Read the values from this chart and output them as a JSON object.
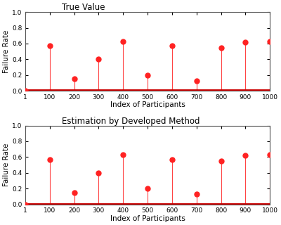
{
  "x_values": [
    1,
    100,
    200,
    300,
    400,
    500,
    600,
    700,
    800,
    900,
    1000
  ],
  "y_true": [
    0.0,
    0.57,
    0.15,
    0.4,
    0.63,
    0.2,
    0.57,
    0.13,
    0.55,
    0.62,
    0.63
  ],
  "y_est": [
    0.0,
    0.57,
    0.15,
    0.4,
    0.63,
    0.2,
    0.57,
    0.13,
    0.55,
    0.62,
    0.63
  ],
  "title1": "True Value",
  "title2": "Estimation by Developed Method",
  "xlabel": "Index of Participants",
  "ylabel": "Failure Rate",
  "xlim": [
    1,
    1000
  ],
  "ylim": [
    0,
    1
  ],
  "yticks": [
    0,
    0.2,
    0.4,
    0.6,
    0.8,
    1
  ],
  "xticks": [
    1,
    100,
    200,
    300,
    400,
    500,
    600,
    700,
    800,
    900,
    1000
  ],
  "xtick_labels": [
    "1",
    "100",
    "200",
    "300",
    "400",
    "500",
    "600",
    "700",
    "800",
    "900",
    "1000"
  ],
  "line_color": "#ff4444",
  "marker_color": "#ff2222",
  "baseline_color": "#cc0000",
  "marker_size": 5,
  "line_width": 0.8,
  "baseline_lw": 3.5,
  "bg_color": "#ffffff",
  "title_fontsize": 8.5,
  "label_fontsize": 7.5,
  "tick_fontsize": 6.5
}
